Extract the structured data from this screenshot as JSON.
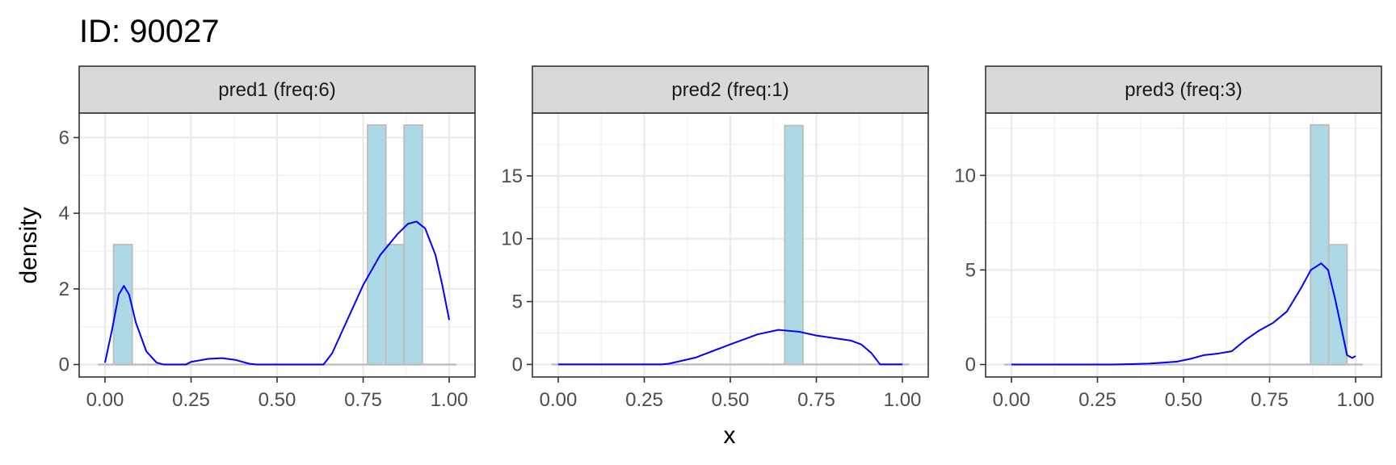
{
  "title": "ID: 90027",
  "chart_data": {
    "type": "histogram+density",
    "xlabel": "x",
    "ylabel": "density",
    "grid": true,
    "colors": {
      "bar_fill": "#add8e6",
      "bar_stroke": "#bebebe",
      "density_line": "#0000ff",
      "baseline": "#bebebe",
      "strip_fill": "#d9d9d9"
    },
    "panels": [
      {
        "label": "pred1 (freq:6)",
        "xlim": [
          -0.075,
          1.075
        ],
        "ylim": [
          -0.33,
          6.65
        ],
        "xticks": [
          0,
          0.25,
          0.5,
          0.75,
          1
        ],
        "xtick_labels": [
          "0.00",
          "0.25",
          "0.50",
          "0.75",
          "1.00"
        ],
        "yticks": [
          0,
          2,
          4,
          6
        ],
        "ytick_labels": [
          "0",
          "2",
          "4",
          "6"
        ],
        "bars": [
          {
            "x0": 0.025,
            "x1": 0.079,
            "value": 3.17
          },
          {
            "x0": 0.763,
            "x1": 0.816,
            "value": 6.33
          },
          {
            "x0": 0.816,
            "x1": 0.869,
            "value": 3.17
          },
          {
            "x0": 0.869,
            "x1": 0.922,
            "value": 6.33
          }
        ],
        "density": [
          [
            0,
            0.05
          ],
          [
            0.02,
            0.9
          ],
          [
            0.04,
            1.85
          ],
          [
            0.055,
            2.08
          ],
          [
            0.07,
            1.85
          ],
          [
            0.09,
            1.1
          ],
          [
            0.12,
            0.35
          ],
          [
            0.15,
            0.05
          ],
          [
            0.17,
            0
          ],
          [
            0.235,
            0
          ],
          [
            0.25,
            0.07
          ],
          [
            0.3,
            0.15
          ],
          [
            0.34,
            0.17
          ],
          [
            0.38,
            0.12
          ],
          [
            0.42,
            0.02
          ],
          [
            0.44,
            0
          ],
          [
            0.635,
            0
          ],
          [
            0.66,
            0.3
          ],
          [
            0.7,
            1.1
          ],
          [
            0.75,
            2.1
          ],
          [
            0.8,
            2.9
          ],
          [
            0.85,
            3.45
          ],
          [
            0.88,
            3.72
          ],
          [
            0.905,
            3.78
          ],
          [
            0.93,
            3.6
          ],
          [
            0.96,
            2.9
          ],
          [
            0.98,
            2.1
          ],
          [
            1.0,
            1.18
          ]
        ],
        "baseline": [
          -0.02,
          1.02
        ]
      },
      {
        "label": "pred2 (freq:1)",
        "xlim": [
          -0.075,
          1.075
        ],
        "ylim": [
          -1.0,
          20.0
        ],
        "xticks": [
          0,
          0.25,
          0.5,
          0.75,
          1
        ],
        "xtick_labels": [
          "0.00",
          "0.25",
          "0.50",
          "0.75",
          "1.00"
        ],
        "yticks": [
          0,
          5,
          10,
          15
        ],
        "ytick_labels": [
          "0",
          "5",
          "10",
          "15"
        ],
        "bars": [
          {
            "x0": 0.658,
            "x1": 0.711,
            "value": 19.0
          }
        ],
        "density": [
          [
            0,
            0
          ],
          [
            0.3,
            0
          ],
          [
            0.32,
            0.05
          ],
          [
            0.4,
            0.55
          ],
          [
            0.5,
            1.6
          ],
          [
            0.58,
            2.4
          ],
          [
            0.64,
            2.75
          ],
          [
            0.7,
            2.6
          ],
          [
            0.75,
            2.3
          ],
          [
            0.8,
            2.1
          ],
          [
            0.85,
            1.9
          ],
          [
            0.88,
            1.6
          ],
          [
            0.91,
            0.9
          ],
          [
            0.935,
            0
          ],
          [
            1.0,
            0
          ]
        ],
        "baseline": [
          -0.02,
          1.02
        ]
      },
      {
        "label": "pred3 (freq:3)",
        "xlim": [
          -0.075,
          1.075
        ],
        "ylim": [
          -0.66,
          13.3
        ],
        "xticks": [
          0,
          0.25,
          0.5,
          0.75,
          1
        ],
        "xtick_labels": [
          "0.00",
          "0.25",
          "0.50",
          "0.75",
          "1.00"
        ],
        "yticks": [
          0,
          5,
          10
        ],
        "ytick_labels": [
          "0",
          "5",
          "10"
        ],
        "bars": [
          {
            "x0": 0.869,
            "x1": 0.922,
            "value": 12.67
          },
          {
            "x0": 0.922,
            "x1": 0.975,
            "value": 6.33
          }
        ],
        "density": [
          [
            0,
            0
          ],
          [
            0.3,
            0
          ],
          [
            0.4,
            0.05
          ],
          [
            0.48,
            0.15
          ],
          [
            0.52,
            0.3
          ],
          [
            0.56,
            0.5
          ],
          [
            0.6,
            0.58
          ],
          [
            0.64,
            0.7
          ],
          [
            0.68,
            1.3
          ],
          [
            0.72,
            1.8
          ],
          [
            0.76,
            2.2
          ],
          [
            0.8,
            2.8
          ],
          [
            0.84,
            4.0
          ],
          [
            0.87,
            5.0
          ],
          [
            0.9,
            5.35
          ],
          [
            0.92,
            5.0
          ],
          [
            0.94,
            3.5
          ],
          [
            0.96,
            1.8
          ],
          [
            0.975,
            0.5
          ],
          [
            0.99,
            0.35
          ],
          [
            1.0,
            0.45
          ]
        ],
        "baseline": [
          -0.02,
          1.02
        ]
      }
    ]
  }
}
